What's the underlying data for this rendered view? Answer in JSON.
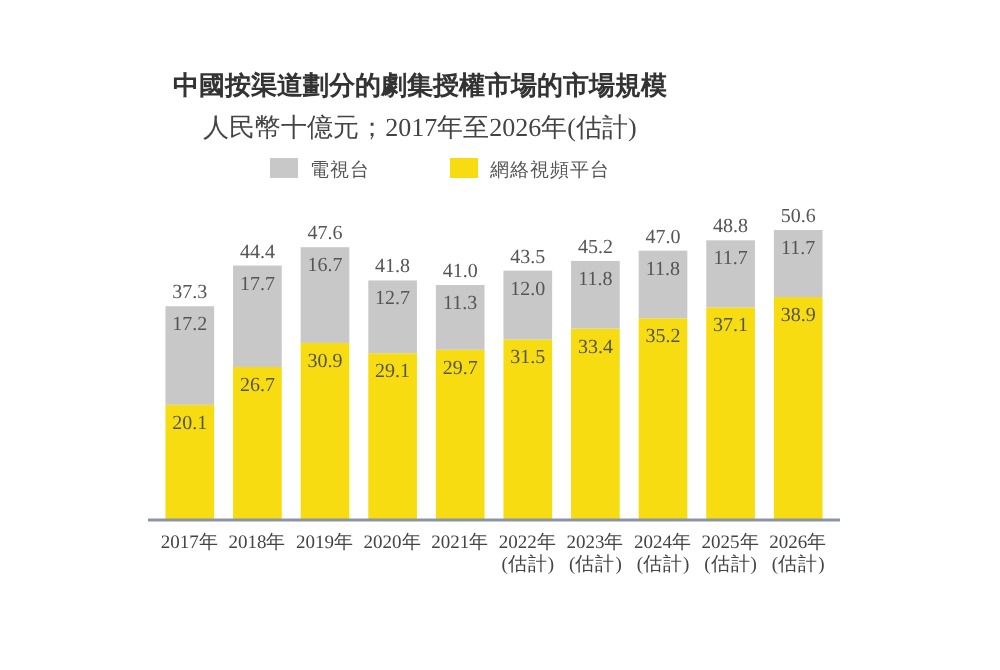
{
  "chart_data": {
    "type": "bar",
    "stacked": true,
    "title": "中國按渠道劃分的劇集授權市場的市場規模",
    "subtitle": "人民幣十億元；2017年至2026年(估計)",
    "categories": [
      "2017年",
      "2018年",
      "2019年",
      "2020年",
      "2021年",
      "2022年\n(估計)",
      "2023年\n(估計)",
      "2024年\n(估計)",
      "2025年\n(估計)",
      "2026年\n(估計)"
    ],
    "series": [
      {
        "name": "網絡視頻平台",
        "color": "#f7dc11",
        "values": [
          20.1,
          26.7,
          30.9,
          29.1,
          29.7,
          31.5,
          33.4,
          35.2,
          37.1,
          38.9
        ],
        "value_labels": [
          "20.1",
          "26.7",
          "30.9",
          "29.1",
          "29.7",
          "31.5",
          "33.4",
          "35.2",
          "37.1",
          "38.9"
        ]
      },
      {
        "name": "電視台",
        "color": "#c8c8c8",
        "values": [
          17.2,
          17.7,
          16.7,
          12.7,
          11.3,
          12.0,
          11.8,
          11.8,
          11.7,
          11.7
        ],
        "value_labels": [
          "17.2",
          "17.7",
          "16.7",
          "12.7",
          "11.3",
          "12.0",
          "11.8",
          "11.8",
          "11.7",
          "11.7"
        ]
      }
    ],
    "totals": [
      "37.3",
      "44.4",
      "47.6",
      "41.8",
      "41.0",
      "43.5",
      "45.2",
      "47.0",
      "48.8",
      "50.6"
    ],
    "legend": "top"
  }
}
